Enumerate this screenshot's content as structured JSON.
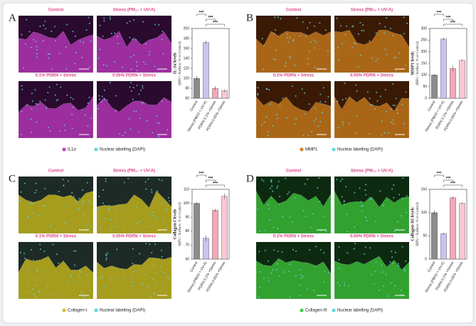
{
  "panels": [
    {
      "letter": "A",
      "image_labels": [
        "Control",
        "Stress (PM₁₀ + UV-A)",
        "0.1% PDRN + Stress",
        "0.05% PDRN + Stress"
      ],
      "legend": [
        "IL1α",
        "Nuclear labelling (DAPI)"
      ]
    },
    {
      "letter": "B",
      "image_labels": [
        "Control",
        "Stress (PM₁₀ + UV-A)",
        "0.1% PDRN + Stress",
        "0.05% PDRN + Stress"
      ],
      "legend": [
        "MMP1",
        "Nuclear labelling (DAPI)"
      ]
    },
    {
      "letter": "C",
      "image_labels": [
        "Control",
        "Stress (PM₁₀ + UV-A)",
        "0.1% PDRN + Stress",
        "0.05% PDRN + Stress"
      ],
      "legend": [
        "Collagen-I",
        "Nuclear labelling (DAPI)"
      ]
    },
    {
      "letter": "D",
      "image_labels": [
        "Control",
        "Stress (PM₁₀ + UV-A)",
        "0.1% PDRN + Stress",
        "0.05% PDRN + Stress"
      ],
      "legend": [
        "Collagen-III",
        "Nuclear labelling (DAPI)"
      ]
    }
  ],
  "chart_data": [
    {
      "type": "bar",
      "y_label": "IL-1α levels",
      "y_sublabel": "(RFU / Surface; % vs Control)",
      "categories": [
        "Control",
        "Stress (PM10 + UV-A)",
        "PDRN 0.1% +Stress",
        "PDRN 0.05% +Stress"
      ],
      "values": [
        100,
        172,
        80,
        75
      ],
      "errors": [
        5,
        3,
        4,
        3
      ],
      "colors": [
        "#8c8c8c",
        "#c9c3ee",
        "#f2a9b8",
        "#f8c9d3"
      ],
      "ylim": [
        60,
        200
      ],
      "yticks": [
        60,
        80,
        100,
        120,
        140,
        160,
        180,
        200
      ],
      "annotations": [
        "***",
        "***",
        "***"
      ]
    },
    {
      "type": "bar",
      "y_label": "MMP1 levels",
      "y_sublabel": "(RFU / Surface; % vs Control)",
      "categories": [
        "Control",
        "Stress (PM10 + UV-A)",
        "PDRN 0.1% +Stress",
        "PDRN 0.05% +Stress"
      ],
      "values": [
        100,
        255,
        128,
        163
      ],
      "errors": [
        4,
        5,
        12,
        4
      ],
      "colors": [
        "#8c8c8c",
        "#c9c3ee",
        "#f2a9b8",
        "#f8c9d3"
      ],
      "ylim": [
        0,
        300
      ],
      "yticks": [
        0,
        50,
        100,
        150,
        200,
        250,
        300
      ],
      "annotations": [
        "***",
        "***",
        "***"
      ]
    },
    {
      "type": "bar",
      "y_label": "Collagen-I levels",
      "y_sublabel": "(RFU / Surface; % vs Control)",
      "categories": [
        "Control",
        "Stress (PM10 + UV-A)",
        "PDRN 0.1% +Stress",
        "PDRN 0.05% +Stress"
      ],
      "values": [
        100,
        75,
        95,
        105
      ],
      "errors": [
        1,
        2,
        1,
        2
      ],
      "colors": [
        "#8c8c8c",
        "#c9c3ee",
        "#f2a9b8",
        "#f8c9d3"
      ],
      "ylim": [
        60,
        110
      ],
      "yticks": [
        60,
        70,
        80,
        90,
        100,
        110
      ],
      "annotations": [
        "***",
        "***",
        "***"
      ]
    },
    {
      "type": "bar",
      "y_label": "Collagen-III levels",
      "y_sublabel": "(RFU / Surface; % vs Control)",
      "categories": [
        "Control",
        "Stress (PM10 + UV-A)",
        "PDRN 0.1% +Stress",
        "PDRN 0.05% +Stress"
      ],
      "values": [
        100,
        55,
        132,
        120
      ],
      "errors": [
        5,
        2,
        3,
        2
      ],
      "colors": [
        "#8c8c8c",
        "#c9c3ee",
        "#f2a9b8",
        "#f8c9d3"
      ],
      "ylim": [
        0,
        150
      ],
      "yticks": [
        0,
        50,
        100,
        150
      ],
      "annotations": [
        "***",
        "***",
        "***"
      ]
    }
  ]
}
